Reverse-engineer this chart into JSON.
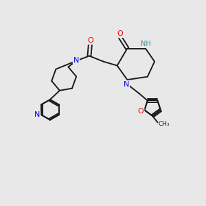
{
  "background_color": "#e8e8e8",
  "bond_color": "#1a1a1a",
  "atom_colors": {
    "N": "#0000ee",
    "NH": "#3a9090",
    "O": "#ee0000",
    "C": "#1a1a1a"
  },
  "figsize": [
    3.0,
    3.0
  ],
  "dpi": 100,
  "xlim": [
    0,
    10
  ],
  "ylim": [
    0,
    10
  ]
}
